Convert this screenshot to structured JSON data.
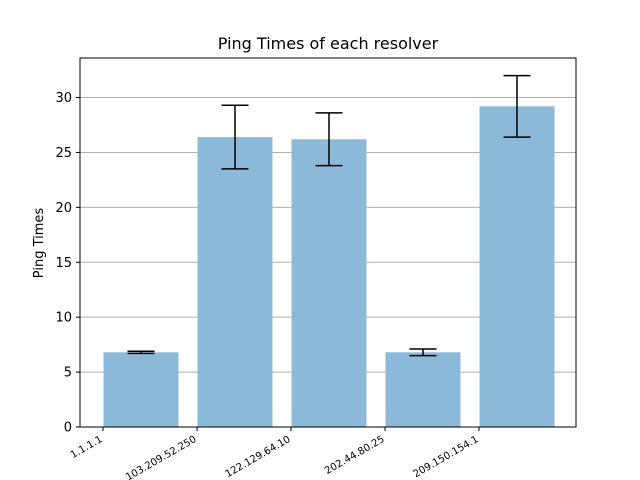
{
  "chart_data": {
    "type": "bar",
    "title": "Ping Times of each resolver",
    "xlabel": "",
    "ylabel": "Ping Times",
    "categories": [
      "1.1.1.1",
      "103.209.52.250",
      "122.129.64.10",
      "202.44.80.25",
      "209.150.154.1"
    ],
    "values": [
      6.8,
      26.4,
      26.2,
      6.8,
      29.2
    ],
    "errors": [
      0.1,
      2.9,
      2.4,
      0.3,
      2.8
    ],
    "yticks": [
      0,
      5,
      10,
      15,
      20,
      25,
      30
    ],
    "ylim": [
      0,
      33.6
    ],
    "grid": "y",
    "legend": "none",
    "colors": {
      "bar": "#8db9d9",
      "bar_alpha": 1,
      "errorbar": "#000000",
      "grid": "#b0b0b0"
    }
  }
}
